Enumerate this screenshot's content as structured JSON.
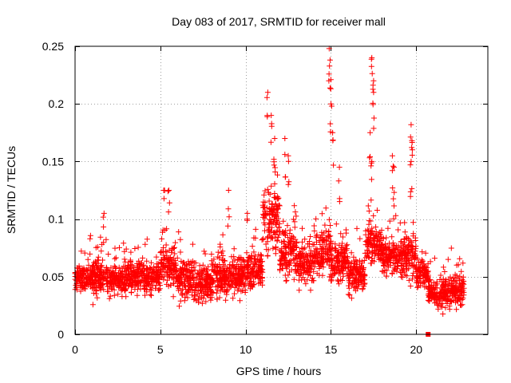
{
  "chart_data": {
    "type": "scatter",
    "title": "Day 083 of 2017, SRMTID for receiver mall",
    "xlabel": "GPS time / hours",
    "ylabel": "SRMTID / TECUs",
    "xlim": [
      0,
      24.2
    ],
    "ylim": [
      0,
      0.25
    ],
    "xticks": [
      0,
      5,
      10,
      15,
      20
    ],
    "xtick_labels": [
      "0",
      "5",
      "10",
      "15",
      "20"
    ],
    "yticks": [
      0,
      0.05,
      0.1,
      0.15,
      0.2,
      0.25
    ],
    "ytick_labels": [
      "0",
      "0.05",
      "0.1",
      "0.15",
      "0.2",
      "0.25"
    ],
    "grid": true,
    "marker": "plus",
    "series_color": "#ff0000",
    "series": [
      {
        "name": "SRMTID",
        "profile": [
          {
            "x": [
              0.0,
              1.0
            ],
            "y": [
              0.035,
              0.065
            ]
          },
          {
            "x": [
              1.0,
              2.0
            ],
            "y": [
              0.03,
              0.07
            ]
          },
          {
            "x": [
              2.0,
              3.0
            ],
            "y": [
              0.028,
              0.065
            ]
          },
          {
            "x": [
              3.0,
              4.0
            ],
            "y": [
              0.03,
              0.07
            ]
          },
          {
            "x": [
              4.0,
              5.0
            ],
            "y": [
              0.03,
              0.068
            ]
          },
          {
            "x": [
              5.0,
              6.0
            ],
            "y": [
              0.035,
              0.085
            ]
          },
          {
            "x": [
              6.0,
              7.0
            ],
            "y": [
              0.025,
              0.07
            ]
          },
          {
            "x": [
              7.0,
              8.0
            ],
            "y": [
              0.02,
              0.065
            ]
          },
          {
            "x": [
              8.0,
              9.0
            ],
            "y": [
              0.025,
              0.07
            ]
          },
          {
            "x": [
              9.0,
              10.0
            ],
            "y": [
              0.025,
              0.075
            ]
          },
          {
            "x": [
              10.0,
              11.0
            ],
            "y": [
              0.035,
              0.075
            ]
          },
          {
            "x": [
              11.0,
              12.0
            ],
            "y": [
              0.06,
              0.14
            ]
          },
          {
            "x": [
              12.0,
              13.0
            ],
            "y": [
              0.04,
              0.1
            ]
          },
          {
            "x": [
              13.0,
              14.0
            ],
            "y": [
              0.035,
              0.085
            ]
          },
          {
            "x": [
              14.0,
              15.0
            ],
            "y": [
              0.045,
              0.1
            ]
          },
          {
            "x": [
              15.0,
              16.0
            ],
            "y": [
              0.04,
              0.085
            ]
          },
          {
            "x": [
              16.0,
              17.0
            ],
            "y": [
              0.03,
              0.075
            ]
          },
          {
            "x": [
              17.0,
              18.0
            ],
            "y": [
              0.055,
              0.1
            ]
          },
          {
            "x": [
              18.0,
              19.0
            ],
            "y": [
              0.045,
              0.09
            ]
          },
          {
            "x": [
              19.0,
              20.0
            ],
            "y": [
              0.04,
              0.095
            ]
          },
          {
            "x": [
              20.0,
              20.7
            ],
            "y": [
              0.035,
              0.07
            ]
          },
          {
            "x": [
              20.7,
              22.8
            ],
            "y": [
              0.02,
              0.055
            ]
          }
        ],
        "peaks": [
          {
            "x": 11.3,
            "y": 0.21
          },
          {
            "x": 11.5,
            "y": 0.19
          },
          {
            "x": 11.7,
            "y": 0.17
          },
          {
            "x": 12.3,
            "y": 0.17
          },
          {
            "x": 12.5,
            "y": 0.155
          },
          {
            "x": 14.9,
            "y": 0.248
          },
          {
            "x": 14.95,
            "y": 0.238
          },
          {
            "x": 15.0,
            "y": 0.2
          },
          {
            "x": 15.1,
            "y": 0.175
          },
          {
            "x": 15.5,
            "y": 0.145
          },
          {
            "x": 17.4,
            "y": 0.24
          },
          {
            "x": 17.5,
            "y": 0.22
          },
          {
            "x": 17.5,
            "y": 0.21
          },
          {
            "x": 17.3,
            "y": 0.175
          },
          {
            "x": 17.4,
            "y": 0.15
          },
          {
            "x": 18.6,
            "y": 0.155
          },
          {
            "x": 18.7,
            "y": 0.145
          },
          {
            "x": 19.7,
            "y": 0.182
          },
          {
            "x": 19.75,
            "y": 0.168
          },
          {
            "x": 19.7,
            "y": 0.15
          },
          {
            "x": 5.2,
            "y": 0.125
          },
          {
            "x": 5.5,
            "y": 0.125
          },
          {
            "x": 9.0,
            "y": 0.125
          },
          {
            "x": 1.7,
            "y": 0.105
          },
          {
            "x": 10.1,
            "y": 0.105
          }
        ],
        "seed": 83,
        "points_per_hour": 130
      }
    ],
    "marker_square": {
      "x": 20.7,
      "y": 0.0
    }
  }
}
